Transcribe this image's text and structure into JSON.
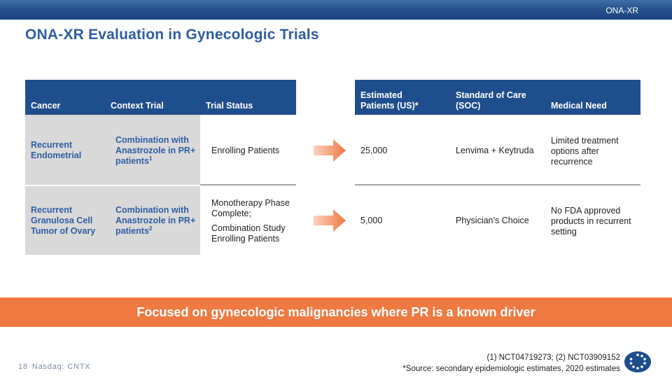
{
  "header": {
    "tag": "ONA-XR",
    "title": "ONA-XR Evaluation in Gynecologic Trials"
  },
  "left_table": {
    "headers": [
      "Cancer",
      "Context Trial",
      "Trial Status"
    ],
    "rows": [
      {
        "cancer": "Recurrent Endometrial",
        "context": "Combination with Anastrozole in PR+ patients",
        "context_sup": "1",
        "status": [
          "Enrolling Patients"
        ]
      },
      {
        "cancer": "Recurrent Granulosa Cell Tumor of Ovary",
        "context": "Combination with Anastrozole in PR+ patients",
        "context_sup": "2",
        "status": [
          "Monotherapy Phase Complete;",
          "Combination Study Enrolling Patients"
        ]
      }
    ]
  },
  "right_table": {
    "headers": [
      "Estimated Patients (US)*",
      "Standard of Care (SOC)",
      "Medical Need"
    ],
    "rows": [
      {
        "patients": "25,000",
        "soc": "Lenvima + Keytruda",
        "need": "Limited treatment options after recurrence"
      },
      {
        "patients": "5,000",
        "soc": "Physician’s Choice",
        "need": "No FDA approved products in recurrent setting"
      }
    ]
  },
  "banner": {
    "text": "Focused on gynecologic malignancies where PR is a known driver"
  },
  "footer": {
    "page_number": "18",
    "ticker": "Nasdaq: CNTX",
    "footnote_1": "(1) NCT04719273; (2) NCT03909152",
    "footnote_2": "*Source: secondary epidemiologic estimates, 2020 estimates"
  },
  "colors": {
    "navy": "#1f4e8c",
    "title_blue": "#2f5ea3",
    "orange": "#ee7a42",
    "gray_cell": "#d9d9d9"
  },
  "icons": {
    "arrow": "orange-right-arrow-icon",
    "logo": "company-logo-icon"
  }
}
